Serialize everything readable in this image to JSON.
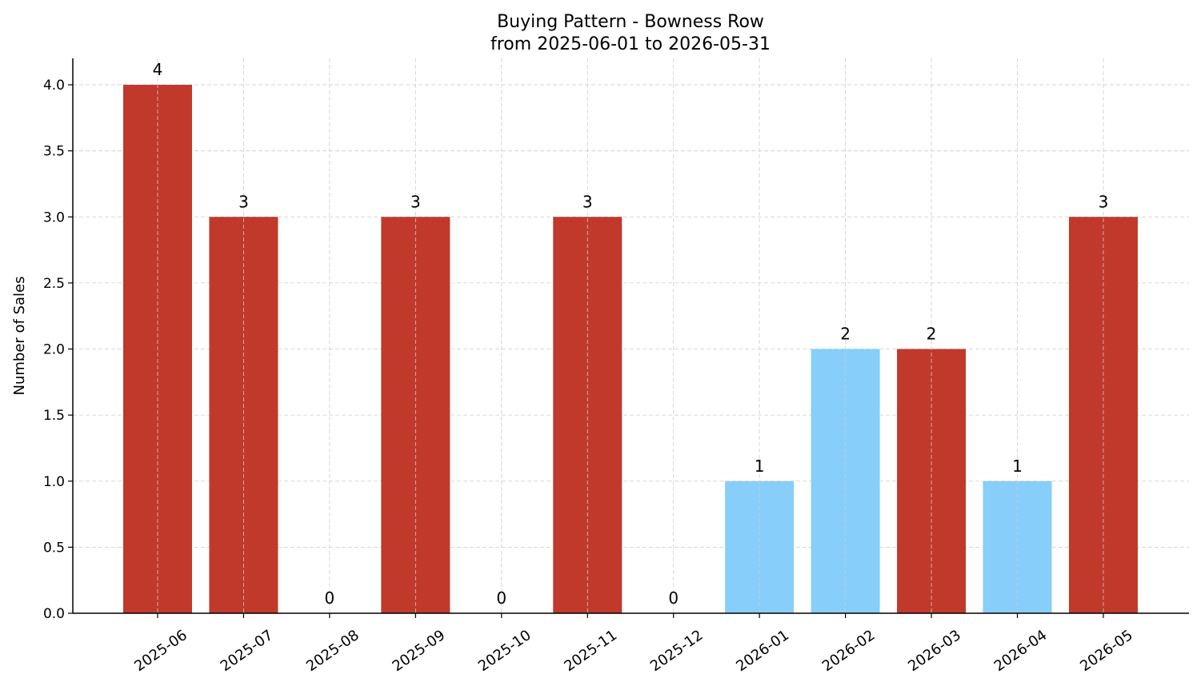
{
  "chart_data": {
    "type": "bar",
    "title": "Buying Pattern - Bowness Row",
    "subtitle": "from 2025-06-01 to 2026-05-31",
    "xlabel": "",
    "ylabel": "Number of Sales",
    "ylim": [
      0,
      4.2
    ],
    "yticks": [
      "0.0",
      "0.5",
      "1.0",
      "1.5",
      "2.0",
      "2.5",
      "3.0",
      "3.5",
      "4.0"
    ],
    "grid": true,
    "categories": [
      "2025-06",
      "2025-07",
      "2025-08",
      "2025-09",
      "2025-10",
      "2025-11",
      "2025-12",
      "2026-01",
      "2026-02",
      "2026-03",
      "2026-04",
      "2026-05"
    ],
    "values": [
      4,
      3,
      0,
      3,
      0,
      3,
      0,
      1,
      2,
      2,
      1,
      3
    ],
    "value_labels": [
      "4",
      "3",
      "0",
      "3",
      "0",
      "3",
      "0",
      "1",
      "2",
      "2",
      "1",
      "3"
    ],
    "bar_colors": [
      "#c0392b",
      "#c0392b",
      "#c0392b",
      "#c0392b",
      "#c0392b",
      "#c0392b",
      "#c0392b",
      "#87cefa",
      "#87cefa",
      "#c0392b",
      "#87cefa",
      "#c0392b"
    ]
  }
}
